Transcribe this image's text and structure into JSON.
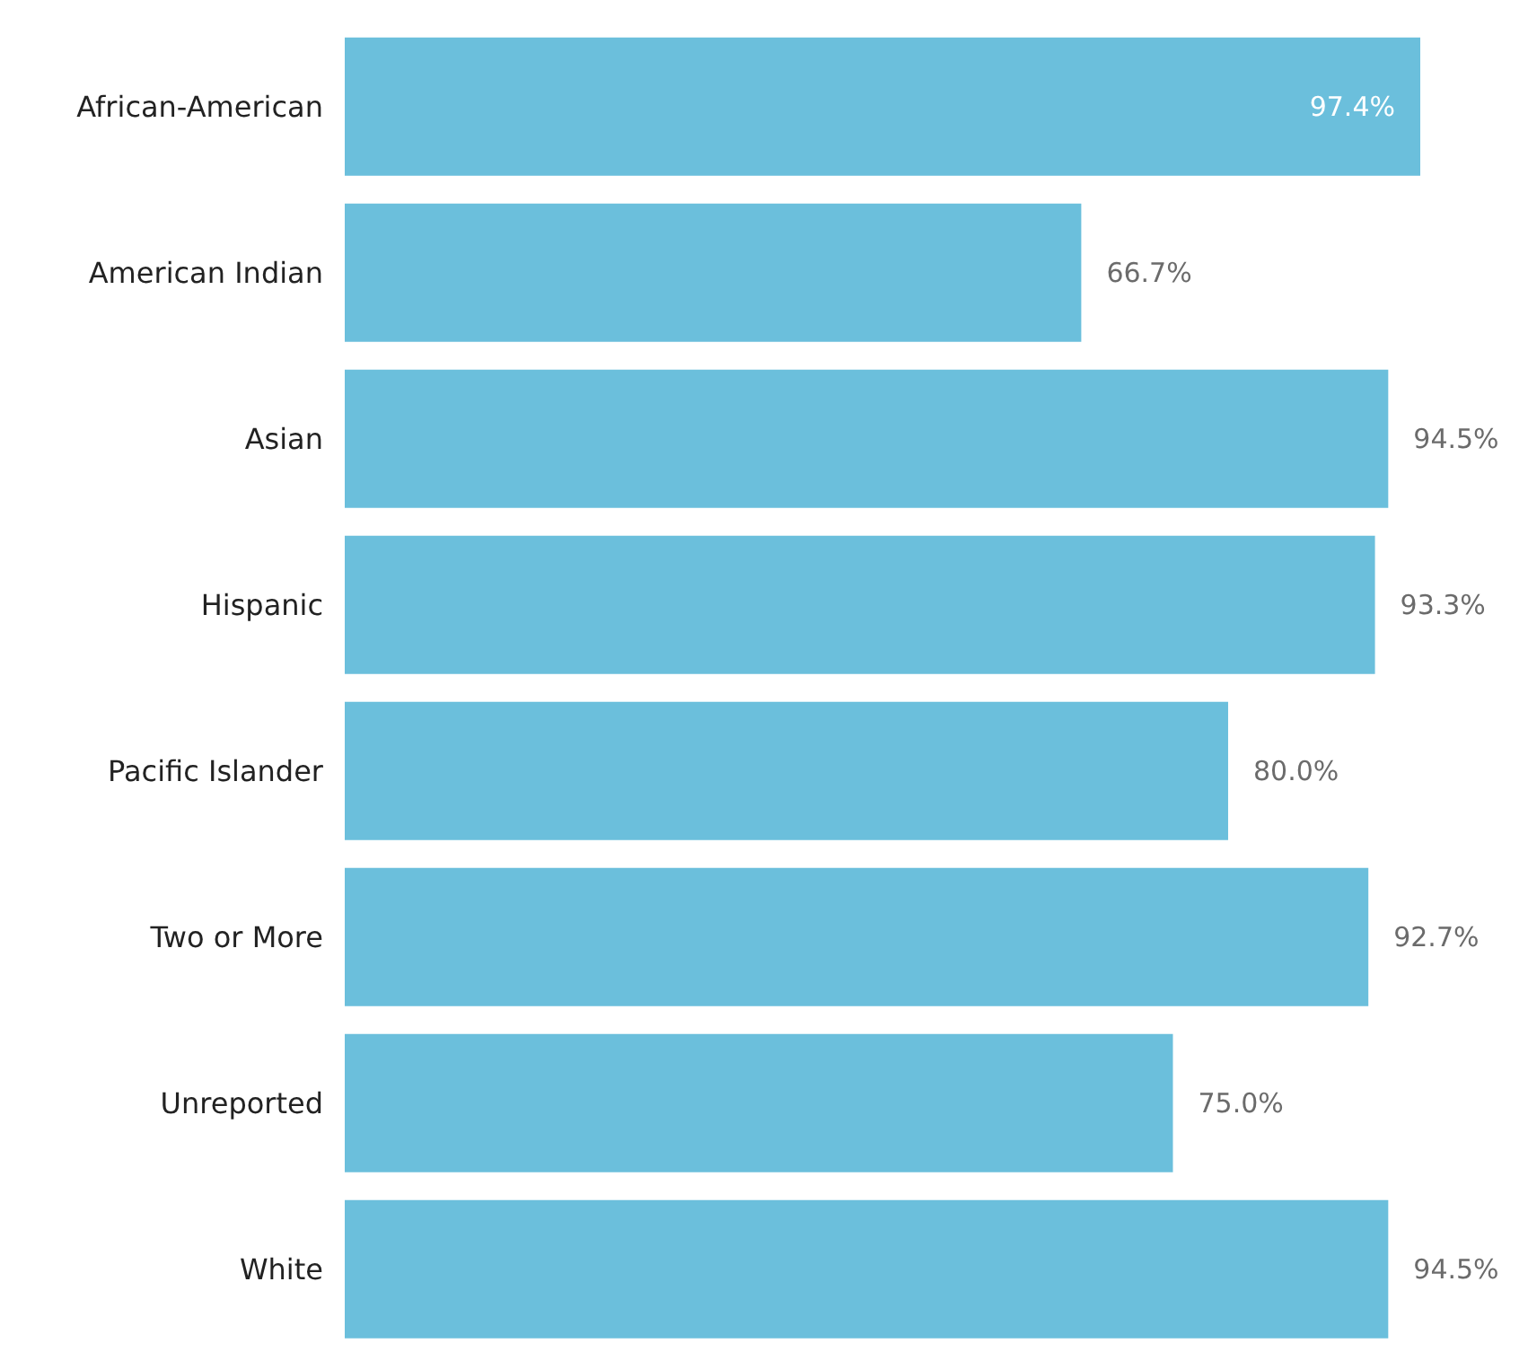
{
  "chart_data": {
    "type": "bar",
    "orientation": "horizontal",
    "categories": [
      "African-American",
      "American Indian",
      "Asian",
      "Hispanic",
      "Pacific Islander",
      "Two or More",
      "Unreported",
      "White"
    ],
    "values": [
      97.4,
      66.7,
      94.5,
      93.3,
      80.0,
      92.7,
      75.0,
      94.5
    ],
    "value_labels": [
      "97.4%",
      "66.7%",
      "94.5%",
      "93.3%",
      "80.0%",
      "92.7%",
      "75.0%",
      "94.5%"
    ],
    "color": "#6bbfdc"
  }
}
